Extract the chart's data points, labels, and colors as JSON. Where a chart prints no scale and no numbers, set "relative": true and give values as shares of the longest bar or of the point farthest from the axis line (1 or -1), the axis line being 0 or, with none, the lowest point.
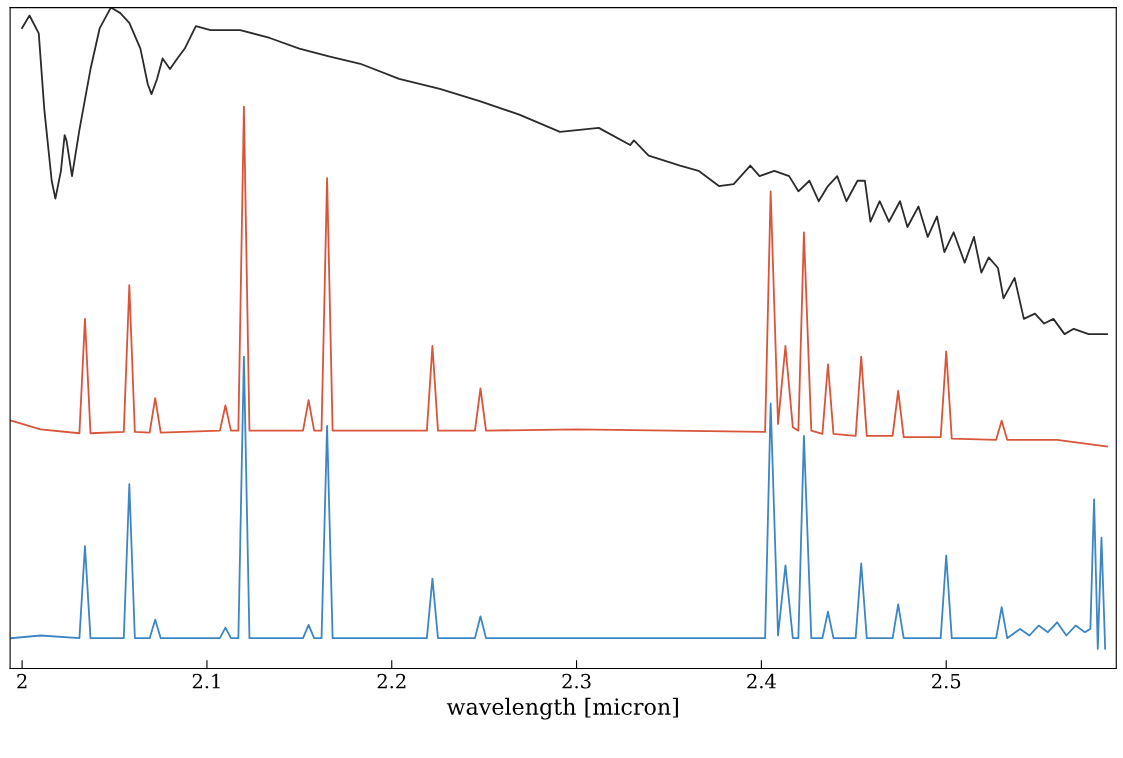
{
  "chart_data": {
    "type": "line",
    "relative": true,
    "xlabel": "wavelength [micron]",
    "xlim": [
      1.9935,
      2.592
    ],
    "xticks": [
      2,
      2.1,
      2.2,
      2.3,
      2.4,
      2.5
    ],
    "tick_labels": "x",
    "grid": false,
    "marker": "none",
    "line_style": "solid",
    "series": [
      {
        "color": "#2b2b2b",
        "x": [
          2.0,
          2.004,
          2.009,
          2.012,
          2.016,
          2.018,
          2.021,
          2.023,
          2.024,
          2.027,
          2.031,
          2.037,
          2.042,
          2.048,
          2.053,
          2.058,
          2.064,
          2.068,
          2.07,
          2.073,
          2.076,
          2.08,
          2.084,
          2.088,
          2.094,
          2.102,
          2.118,
          2.134,
          2.15,
          2.166,
          2.183,
          2.204,
          2.226,
          2.248,
          2.269,
          2.291,
          2.312,
          2.329,
          2.331,
          2.339,
          2.356,
          2.366,
          2.377,
          2.385,
          2.394,
          2.399,
          2.407,
          2.415,
          2.42,
          2.426,
          2.431,
          2.436,
          2.441,
          2.446,
          2.452,
          2.456,
          2.459,
          2.464,
          2.469,
          2.475,
          2.479,
          2.485,
          2.49,
          2.495,
          2.499,
          2.504,
          2.51,
          2.515,
          2.519,
          2.523,
          2.528,
          2.531,
          2.537,
          2.542,
          2.548,
          2.553,
          2.558,
          2.564,
          2.569,
          2.577,
          2.587
        ],
        "values": [
          0.969,
          0.988,
          0.961,
          0.846,
          0.738,
          0.711,
          0.753,
          0.807,
          0.799,
          0.745,
          0.815,
          0.907,
          0.969,
          1,
          0.992,
          0.977,
          0.938,
          0.884,
          0.869,
          0.892,
          0.923,
          0.907,
          0.923,
          0.938,
          0.972,
          0.966,
          0.966,
          0.954,
          0.938,
          0.926,
          0.915,
          0.892,
          0.877,
          0.858,
          0.838,
          0.812,
          0.818,
          0.792,
          0.799,
          0.776,
          0.761,
          0.753,
          0.73,
          0.733,
          0.761,
          0.745,
          0.753,
          0.745,
          0.722,
          0.738,
          0.707,
          0.73,
          0.745,
          0.707,
          0.738,
          0.738,
          0.676,
          0.707,
          0.676,
          0.707,
          0.668,
          0.699,
          0.653,
          0.684,
          0.63,
          0.66,
          0.614,
          0.653,
          0.599,
          0.622,
          0.606,
          0.56,
          0.591,
          0.529,
          0.537,
          0.522,
          0.529,
          0.506,
          0.514,
          0.506,
          0.506
        ]
      },
      {
        "color": "#d9553a",
        "x": [
          1.994,
          2.01,
          2.031,
          2.034,
          2.037,
          2.055,
          2.058,
          2.061,
          2.069,
          2.072,
          2.075,
          2.107,
          2.11,
          2.113,
          2.117,
          2.12,
          2.123,
          2.152,
          2.155,
          2.158,
          2.162,
          2.165,
          2.168,
          2.219,
          2.222,
          2.225,
          2.245,
          2.248,
          2.251,
          2.3,
          2.402,
          2.405,
          2.409,
          2.413,
          2.417,
          2.42,
          2.423,
          2.427,
          2.433,
          2.436,
          2.439,
          2.451,
          2.454,
          2.457,
          2.471,
          2.474,
          2.477,
          2.497,
          2.5,
          2.503,
          2.527,
          2.53,
          2.533,
          2.56,
          2.587
        ],
        "values": [
          0.375,
          0.362,
          0.356,
          0.529,
          0.356,
          0.358,
          0.58,
          0.358,
          0.357,
          0.409,
          0.357,
          0.36,
          0.398,
          0.36,
          0.36,
          0.85,
          0.36,
          0.36,
          0.406,
          0.36,
          0.36,
          0.742,
          0.36,
          0.36,
          0.488,
          0.36,
          0.36,
          0.424,
          0.36,
          0.362,
          0.358,
          0.722,
          0.37,
          0.488,
          0.365,
          0.36,
          0.66,
          0.36,
          0.355,
          0.46,
          0.355,
          0.352,
          0.472,
          0.352,
          0.352,
          0.42,
          0.35,
          0.35,
          0.48,
          0.348,
          0.346,
          0.375,
          0.346,
          0.346,
          0.336
        ]
      },
      {
        "color": "#3d86c6",
        "x": [
          1.994,
          2.01,
          2.031,
          2.034,
          2.037,
          2.055,
          2.058,
          2.061,
          2.069,
          2.072,
          2.075,
          2.107,
          2.11,
          2.113,
          2.117,
          2.12,
          2.123,
          2.152,
          2.155,
          2.158,
          2.162,
          2.165,
          2.168,
          2.219,
          2.222,
          2.225,
          2.245,
          2.248,
          2.251,
          2.3,
          2.402,
          2.405,
          2.409,
          2.413,
          2.417,
          2.42,
          2.423,
          2.427,
          2.433,
          2.436,
          2.439,
          2.451,
          2.454,
          2.457,
          2.471,
          2.474,
          2.477,
          2.497,
          2.5,
          2.503,
          2.527,
          2.53,
          2.533,
          2.54,
          2.545,
          2.55,
          2.555,
          2.56,
          2.565,
          2.57,
          2.575,
          2.578,
          2.58,
          2.582,
          2.584,
          2.586
        ],
        "values": [
          0.046,
          0.05,
          0.046,
          0.185,
          0.046,
          0.046,
          0.279,
          0.046,
          0.046,
          0.074,
          0.046,
          0.046,
          0.062,
          0.046,
          0.046,
          0.472,
          0.046,
          0.046,
          0.066,
          0.046,
          0.046,
          0.367,
          0.046,
          0.046,
          0.136,
          0.046,
          0.046,
          0.079,
          0.046,
          0.046,
          0.046,
          0.401,
          0.05,
          0.156,
          0.046,
          0.046,
          0.352,
          0.046,
          0.046,
          0.086,
          0.046,
          0.046,
          0.159,
          0.046,
          0.046,
          0.097,
          0.046,
          0.046,
          0.171,
          0.046,
          0.046,
          0.093,
          0.046,
          0.06,
          0.05,
          0.065,
          0.055,
          0.07,
          0.05,
          0.065,
          0.055,
          0.06,
          0.256,
          0.03,
          0.198,
          0.03
        ]
      }
    ]
  }
}
